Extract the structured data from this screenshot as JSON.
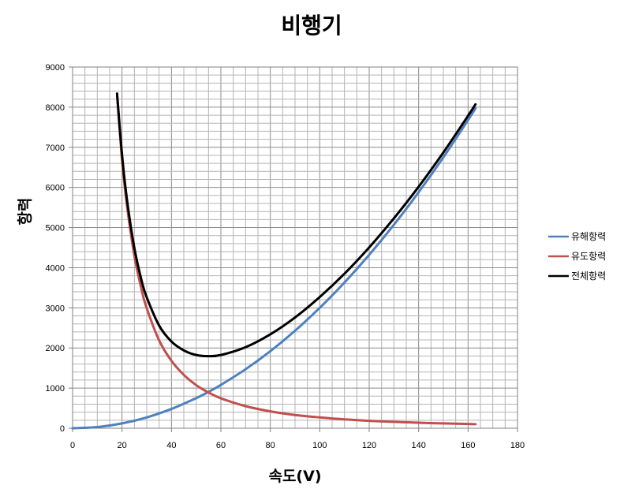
{
  "chart_data": {
    "type": "line",
    "title": "비행기",
    "xlabel": "속도(V)",
    "ylabel": "항력",
    "xlim": [
      0,
      180
    ],
    "ylim": [
      0,
      9000
    ],
    "x_ticks": [
      0,
      20,
      40,
      60,
      80,
      100,
      120,
      140,
      160,
      180
    ],
    "y_ticks": [
      0,
      1000,
      2000,
      3000,
      4000,
      5000,
      6000,
      7000,
      8000,
      9000
    ],
    "grid": true,
    "legend_position": "right",
    "series": [
      {
        "name": "유해항력",
        "color": "#4F81BD",
        "x": [
          0,
          10,
          20,
          30,
          40,
          50,
          55,
          60,
          70,
          80,
          90,
          100,
          110,
          120,
          130,
          140,
          150,
          160,
          163
        ],
        "y": [
          0,
          30,
          120,
          270,
          480,
          750,
          905,
          1080,
          1470,
          1920,
          2430,
          3000,
          3630,
          4320,
          5070,
          5880,
          6750,
          7680,
          7970
        ]
      },
      {
        "name": "유도항력",
        "color": "#C0504D",
        "x": [
          18,
          20,
          22,
          25,
          28,
          30,
          35,
          40,
          45,
          50,
          55,
          60,
          70,
          80,
          90,
          100,
          110,
          120,
          130,
          140,
          150,
          160,
          163
        ],
        "y": [
          8300,
          6700,
          5550,
          4300,
          3430,
          2990,
          2190,
          1680,
          1330,
          1075,
          890,
          745,
          550,
          420,
          330,
          270,
          220,
          185,
          160,
          137,
          120,
          105,
          101
        ]
      },
      {
        "name": "전체항력",
        "color": "#000000",
        "x": [
          18,
          20,
          22,
          25,
          28,
          30,
          35,
          40,
          45,
          50,
          55,
          60,
          70,
          80,
          90,
          100,
          110,
          120,
          130,
          140,
          150,
          160,
          163
        ],
        "y": [
          8340,
          6820,
          5700,
          4490,
          3660,
          3260,
          2560,
          2160,
          1940,
          1825,
          1795,
          1825,
          2020,
          2340,
          2760,
          3270,
          3850,
          4505,
          5230,
          6017,
          6870,
          7785,
          8071
        ]
      }
    ]
  }
}
